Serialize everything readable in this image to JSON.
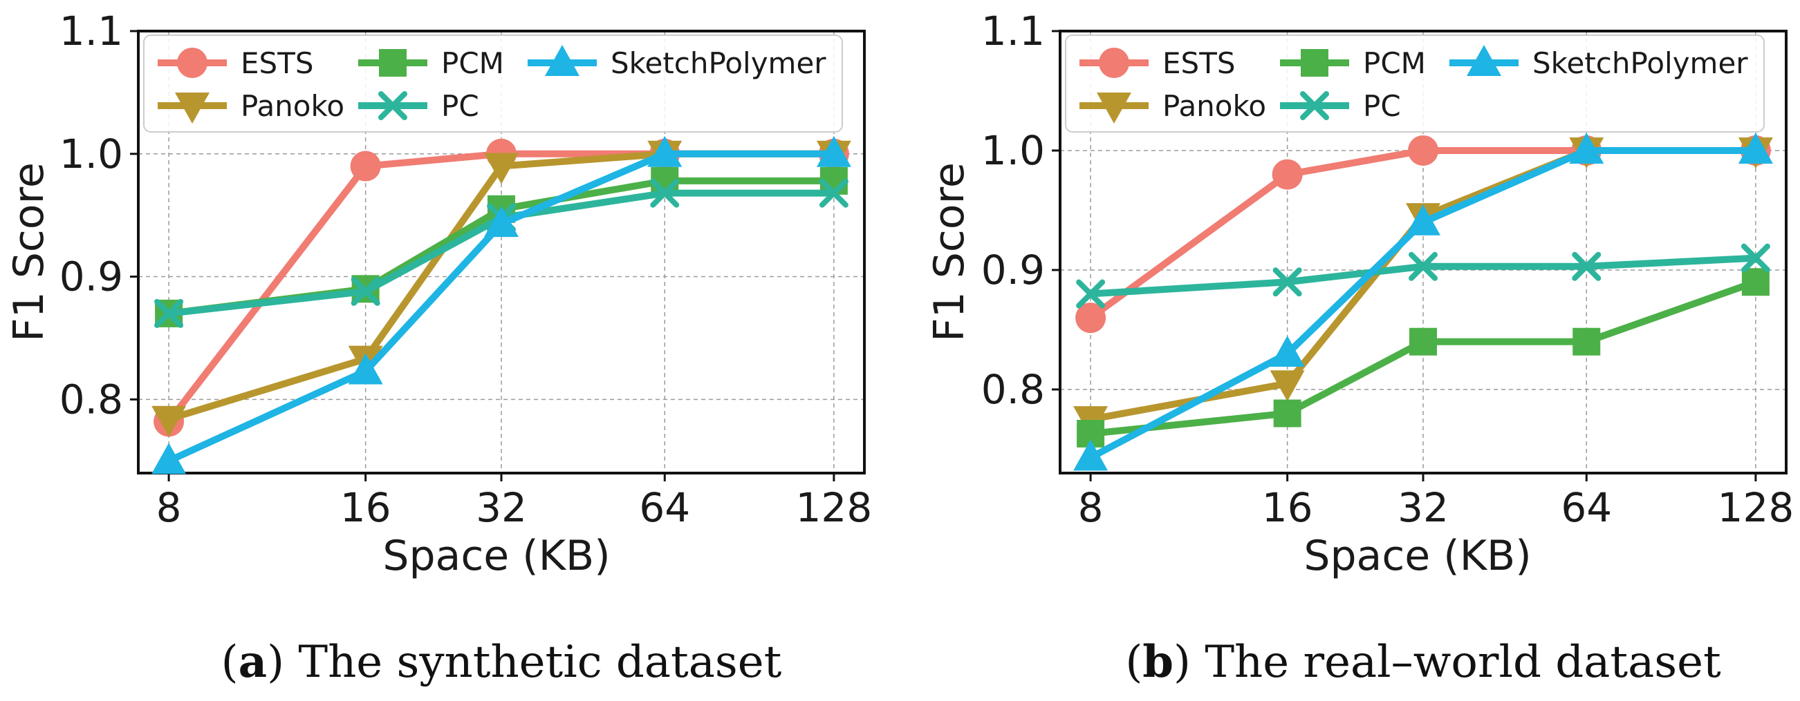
{
  "colors": {
    "ESTS": "#f07c72",
    "Panoko": "#b8962e",
    "PCM": "#4cb048",
    "PC": "#2cb59c",
    "SketchPolymer": "#1eb4e4"
  },
  "chart_data": [
    {
      "type": "line",
      "panel_id": "a",
      "caption_label": "a",
      "caption_text": "The synthetic dataset",
      "xlabel": "Space (KB)",
      "ylabel": "F1 Score",
      "categories": [
        "8",
        "16",
        "32",
        "64",
        "128"
      ],
      "ylim": [
        0.74,
        1.1
      ],
      "yticks": [
        "0.8",
        "0.9",
        "1.0",
        "1.1"
      ],
      "grid": true,
      "legend_position": "top",
      "series": [
        {
          "name": "ESTS",
          "marker": "circle",
          "values": [
            0.782,
            0.99,
            1.0,
            1.0,
            1.0
          ]
        },
        {
          "name": "Panoko",
          "marker": "triangle-down",
          "values": [
            0.784,
            0.833,
            0.99,
            1.0,
            1.0
          ]
        },
        {
          "name": "PCM",
          "marker": "square",
          "values": [
            0.87,
            0.89,
            0.955,
            0.978,
            0.978
          ]
        },
        {
          "name": "PC",
          "marker": "x",
          "values": [
            0.87,
            0.888,
            0.948,
            0.968,
            0.968
          ]
        },
        {
          "name": "SketchPolymer",
          "marker": "triangle-up",
          "values": [
            0.75,
            0.823,
            0.943,
            1.0,
            1.0
          ]
        }
      ]
    },
    {
      "type": "line",
      "panel_id": "b",
      "caption_label": "b",
      "caption_text": "The real–world dataset",
      "xlabel": "Space (KB)",
      "ylabel": "F1 Score",
      "categories": [
        "8",
        "16",
        "32",
        "64",
        "128"
      ],
      "ylim": [
        0.73,
        1.1
      ],
      "yticks": [
        "0.8",
        "0.9",
        "1.0",
        "1.1"
      ],
      "grid": true,
      "legend_position": "top",
      "series": [
        {
          "name": "ESTS",
          "marker": "circle",
          "values": [
            0.86,
            0.98,
            1.0,
            1.0,
            1.0
          ]
        },
        {
          "name": "Panoko",
          "marker": "triangle-down",
          "values": [
            0.775,
            0.805,
            0.945,
            1.0,
            1.0
          ]
        },
        {
          "name": "PCM",
          "marker": "square",
          "values": [
            0.763,
            0.78,
            0.84,
            0.84,
            0.89
          ]
        },
        {
          "name": "PC",
          "marker": "x",
          "values": [
            0.88,
            0.89,
            0.903,
            0.903,
            0.91
          ]
        },
        {
          "name": "SketchPolymer",
          "marker": "triangle-up",
          "values": [
            0.743,
            0.83,
            0.94,
            1.0,
            1.0
          ]
        }
      ]
    }
  ]
}
